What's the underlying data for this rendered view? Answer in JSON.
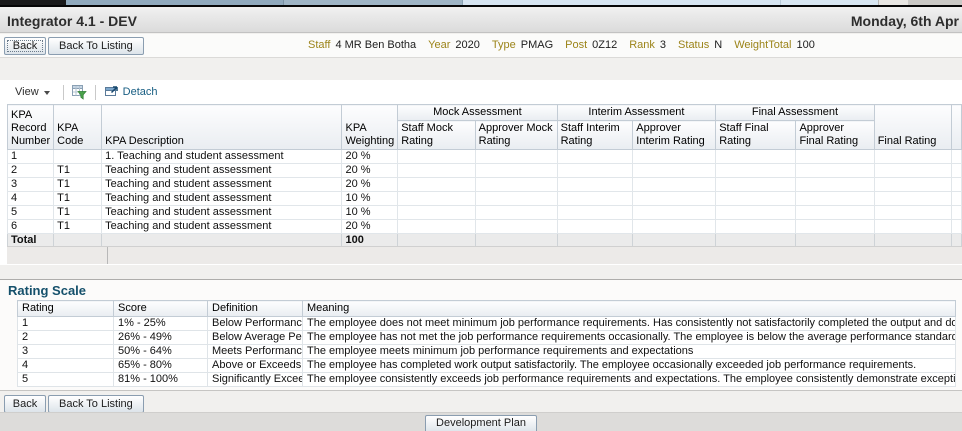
{
  "header": {
    "title": "Integrator 4.1 - DEV",
    "date": "Monday, 6th Apr"
  },
  "nav": {
    "back": "Back",
    "back_to_listing": "Back To Listing"
  },
  "staff_info": [
    {
      "label": "Staff",
      "value": "4 MR Ben Botha"
    },
    {
      "label": "Year",
      "value": "2020"
    },
    {
      "label": "Type",
      "value": "PMAG"
    },
    {
      "label": "Post",
      "value": "0Z12"
    },
    {
      "label": "Rank",
      "value": "3"
    },
    {
      "label": "Status",
      "value": "N"
    },
    {
      "label": "WeightTotal",
      "value": "100"
    }
  ],
  "toolbar": {
    "view_label": "View",
    "detach_label": "Detach"
  },
  "kpa_table": {
    "group_headers": [
      "Mock Assessment",
      "Interim Assessment",
      "Final Assessment"
    ],
    "columns": [
      "KPA Record Number",
      "KPA Code",
      "KPA Description",
      "KPA Weighting",
      "Staff Mock Rating",
      "Approver Mock Rating",
      "Staff Interim Rating",
      "Approver Interim Rating",
      "Staff Final Rating",
      "Approver Final Rating",
      "Final Rating"
    ],
    "rows": [
      {
        "record_number": "1",
        "code": "",
        "description": "1. Teaching and student assessment",
        "weighting": "20 %"
      },
      {
        "record_number": "2",
        "code": "T1",
        "description": "Teaching and student assessment",
        "weighting": "20 %"
      },
      {
        "record_number": "3",
        "code": "T1",
        "description": "Teaching and student assessment",
        "weighting": "20 %"
      },
      {
        "record_number": "4",
        "code": "T1",
        "description": "Teaching and student assessment",
        "weighting": "10 %"
      },
      {
        "record_number": "5",
        "code": "T1",
        "description": "Teaching and student assessment",
        "weighting": "10 %"
      },
      {
        "record_number": "6",
        "code": "T1",
        "description": "Teaching and student assessment",
        "weighting": "20 %"
      }
    ],
    "total": {
      "label": "Total",
      "weighting": "100"
    }
  },
  "rating_scale": {
    "title": "Rating Scale",
    "columns": [
      "Rating",
      "Score",
      "Definition",
      "Meaning"
    ],
    "rows": [
      {
        "rating": "1",
        "score": "1% - 25%",
        "definition": "Below Performanc...",
        "meaning": "The employee does not meet minimum job performance requirements. Has consistently not satisfactorily completed the output and does not meet acce"
      },
      {
        "rating": "2",
        "score": "26% - 49%",
        "definition": "Below Average Pe...",
        "meaning": "The employee has not met the job performance requirements occasionally. The employee is below the average performance standard required in the j"
      },
      {
        "rating": "3",
        "score": "50% - 64%",
        "definition": "Meets Performanc...",
        "meaning": "The employee meets minimum job performance requirements and expectations"
      },
      {
        "rating": "4",
        "score": "65% - 80%",
        "definition": "Above or Exceeds...",
        "meaning": "The employee has completed work output satisfactorily. The employee occasionally exceeded job performance requirements."
      },
      {
        "rating": "5",
        "score": "81% - 100%",
        "definition": "Significantly Excee...",
        "meaning": "The employee consistently exceeds job performance requirements and expectations. The employee consistently demonstrate exceptional performance"
      }
    ]
  },
  "footer": {
    "back": "Back",
    "back_to_listing": "Back To Listing",
    "development_plan": "Development Plan"
  },
  "colors": {
    "label_gold": "#9c8419",
    "detach_link": "#175d82",
    "panel_title_teal": "#15506b"
  }
}
